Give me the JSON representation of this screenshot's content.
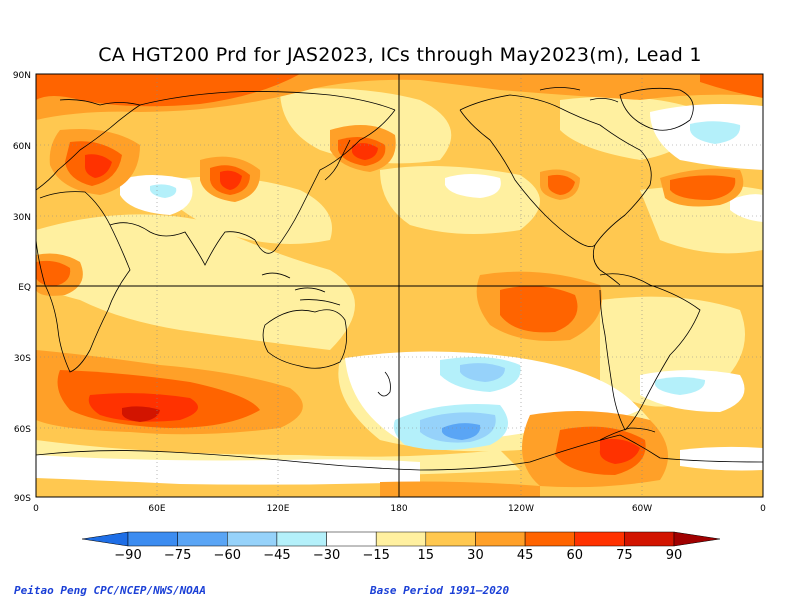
{
  "title": "CA HGT200 Prd for JAS2023, ICs through May2023(m), Lead 1",
  "lat_labels": [
    "90N",
    "60N",
    "30N",
    "EQ",
    "30S",
    "60S",
    "90S"
  ],
  "lon_labels": [
    "0",
    "60E",
    "120E",
    "180",
    "120W",
    "60W",
    "0"
  ],
  "legend": {
    "ticks": [
      "−90",
      "−75",
      "−60",
      "−45",
      "−30",
      "−15",
      "15",
      "30",
      "45",
      "60",
      "75",
      "90"
    ],
    "colors": [
      "#1e6ee6",
      "#3c8cf0",
      "#5aa5f5",
      "#96d2fa",
      "#b4f0fa",
      "#ffffff",
      "#fff0a0",
      "#ffc850",
      "#ffa028",
      "#ff6400",
      "#ff3200",
      "#d21400",
      "#a00000"
    ]
  },
  "credits": {
    "left": "Peitao Peng CPC/NCEP/NWS/NOAA",
    "right": "Base Period 1991–2020"
  }
}
